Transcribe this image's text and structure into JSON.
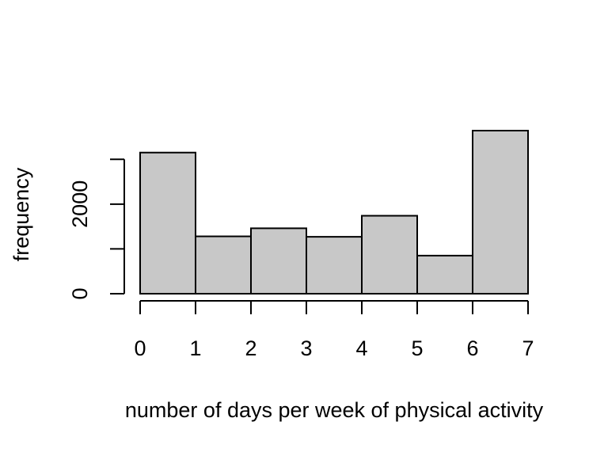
{
  "chart_data": {
    "type": "bar",
    "title": "",
    "xlabel": "number of days per week of physical activity",
    "ylabel": "frequency",
    "bins": [
      {
        "start": 0,
        "end": 1,
        "value": 3150
      },
      {
        "start": 1,
        "end": 2,
        "value": 1280
      },
      {
        "start": 2,
        "end": 3,
        "value": 1460
      },
      {
        "start": 3,
        "end": 4,
        "value": 1270
      },
      {
        "start": 4,
        "end": 5,
        "value": 1740
      },
      {
        "start": 5,
        "end": 6,
        "value": 850
      },
      {
        "start": 6,
        "end": 7,
        "value": 3640
      }
    ],
    "xlim": [
      0,
      7
    ],
    "ylim": [
      0,
      3640
    ],
    "x_ticks": [
      0,
      1,
      2,
      3,
      4,
      5,
      6,
      7
    ],
    "x_tick_labels": [
      "0",
      "1",
      "2",
      "3",
      "4",
      "5",
      "6",
      "7"
    ],
    "y_ticks": [
      0,
      1000,
      2000,
      3000
    ],
    "y_tick_labels": [
      "0",
      "",
      "2000",
      ""
    ],
    "grid": false,
    "legend": "none",
    "colors": {
      "bar_fill": "#c8c8c8",
      "bar_stroke": "#000000",
      "axis": "#000000"
    }
  }
}
